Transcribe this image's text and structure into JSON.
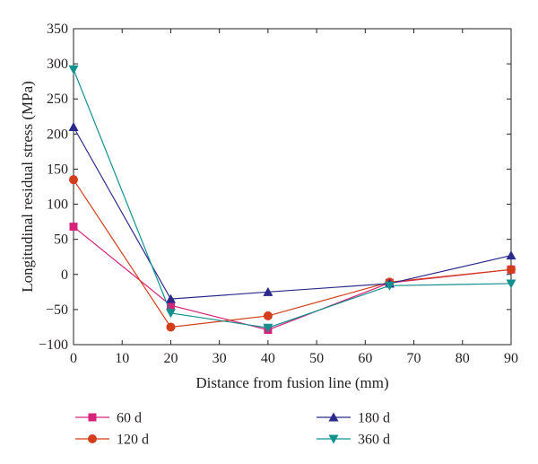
{
  "chart_data": {
    "type": "line",
    "xlabel": "Distance from fusion line (mm)",
    "ylabel": "Longitudinal residual stress (MPa)",
    "xlim": [
      0,
      90
    ],
    "ylim": [
      -100,
      350
    ],
    "xticks": [
      0,
      10,
      20,
      30,
      40,
      50,
      60,
      70,
      80,
      90
    ],
    "yticks": [
      -100,
      -50,
      0,
      50,
      100,
      150,
      200,
      250,
      300,
      350
    ],
    "grid": false,
    "legend_position": "bottom",
    "series": [
      {
        "name": "60 d",
        "color": "#d6247a",
        "marker": "square",
        "x": [
          0,
          20,
          40,
          65,
          90
        ],
        "y": [
          68,
          -44,
          -79,
          -12,
          7
        ]
      },
      {
        "name": "120 d",
        "color": "#d43d1a",
        "marker": "circle",
        "x": [
          0,
          20,
          40,
          65,
          90
        ],
        "y": [
          135,
          -75,
          -59,
          -11,
          7
        ]
      },
      {
        "name": "180 d",
        "color": "#2b2a8c",
        "marker": "triangle-up",
        "x": [
          0,
          20,
          40,
          65,
          90
        ],
        "y": [
          210,
          -35,
          -25,
          -13,
          27
        ]
      },
      {
        "name": "360 d",
        "color": "#12918f",
        "marker": "triangle-down",
        "x": [
          0,
          20,
          40,
          65,
          90
        ],
        "y": [
          292,
          -55,
          -76,
          -16,
          -13
        ]
      }
    ]
  }
}
